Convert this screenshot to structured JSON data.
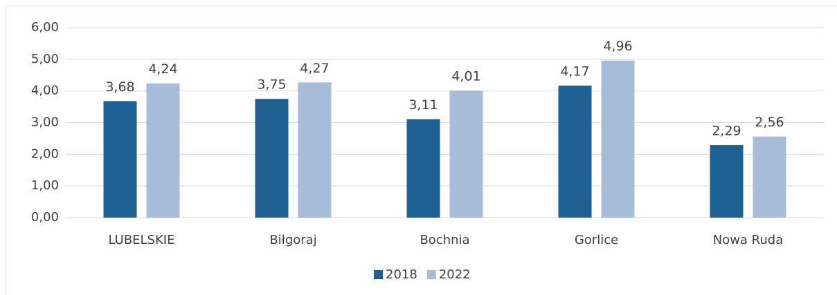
{
  "chart_data": {
    "type": "bar",
    "categories": [
      "LUBELSKIE",
      "Biłgoraj",
      "Bochnia",
      "Gorlice",
      "Nowa Ruda"
    ],
    "series": [
      {
        "name": "2018",
        "color": "#1f6092",
        "values": [
          3.68,
          3.75,
          3.11,
          4.17,
          2.29
        ],
        "value_labels": [
          "3,68",
          "3,75",
          "3,11",
          "4,17",
          "2,29"
        ]
      },
      {
        "name": "2022",
        "color": "#a6bcd9",
        "values": [
          4.24,
          4.27,
          4.01,
          4.96,
          2.56
        ],
        "value_labels": [
          "4,24",
          "4,27",
          "4,01",
          "4,96",
          "2,56"
        ]
      }
    ],
    "ylim": [
      0,
      6
    ],
    "yticks": [
      {
        "value": 0,
        "label": "0,00"
      },
      {
        "value": 1,
        "label": "1,00"
      },
      {
        "value": 2,
        "label": "2,00"
      },
      {
        "value": 3,
        "label": "3,00"
      },
      {
        "value": 4,
        "label": "4,00"
      },
      {
        "value": 5,
        "label": "5,00"
      },
      {
        "value": 6,
        "label": "6,00"
      }
    ],
    "grid": true,
    "legend": "bottom"
  }
}
